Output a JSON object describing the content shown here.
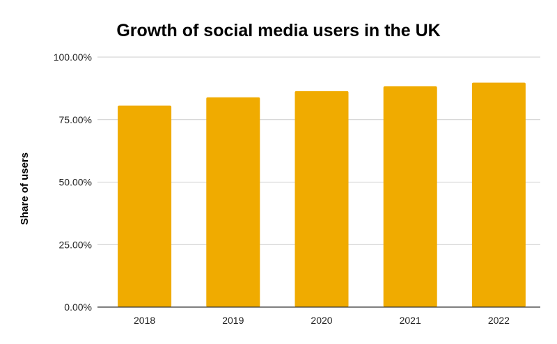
{
  "chart_data": {
    "type": "bar",
    "title": "Growth of social media users in the UK",
    "xlabel": "",
    "ylabel": "Share of users",
    "categories": [
      "2018",
      "2019",
      "2020",
      "2021",
      "2022"
    ],
    "values": [
      80.6,
      83.9,
      86.4,
      88.3,
      89.8
    ],
    "ylim": [
      0,
      100
    ],
    "yticks": [
      0,
      25,
      50,
      75,
      100
    ],
    "ytick_labels": [
      "0.00%",
      "25.00%",
      "50.00%",
      "75.00%",
      "100.00%"
    ],
    "grid": true,
    "legend": "none",
    "bar_color": "#F0AB00"
  }
}
